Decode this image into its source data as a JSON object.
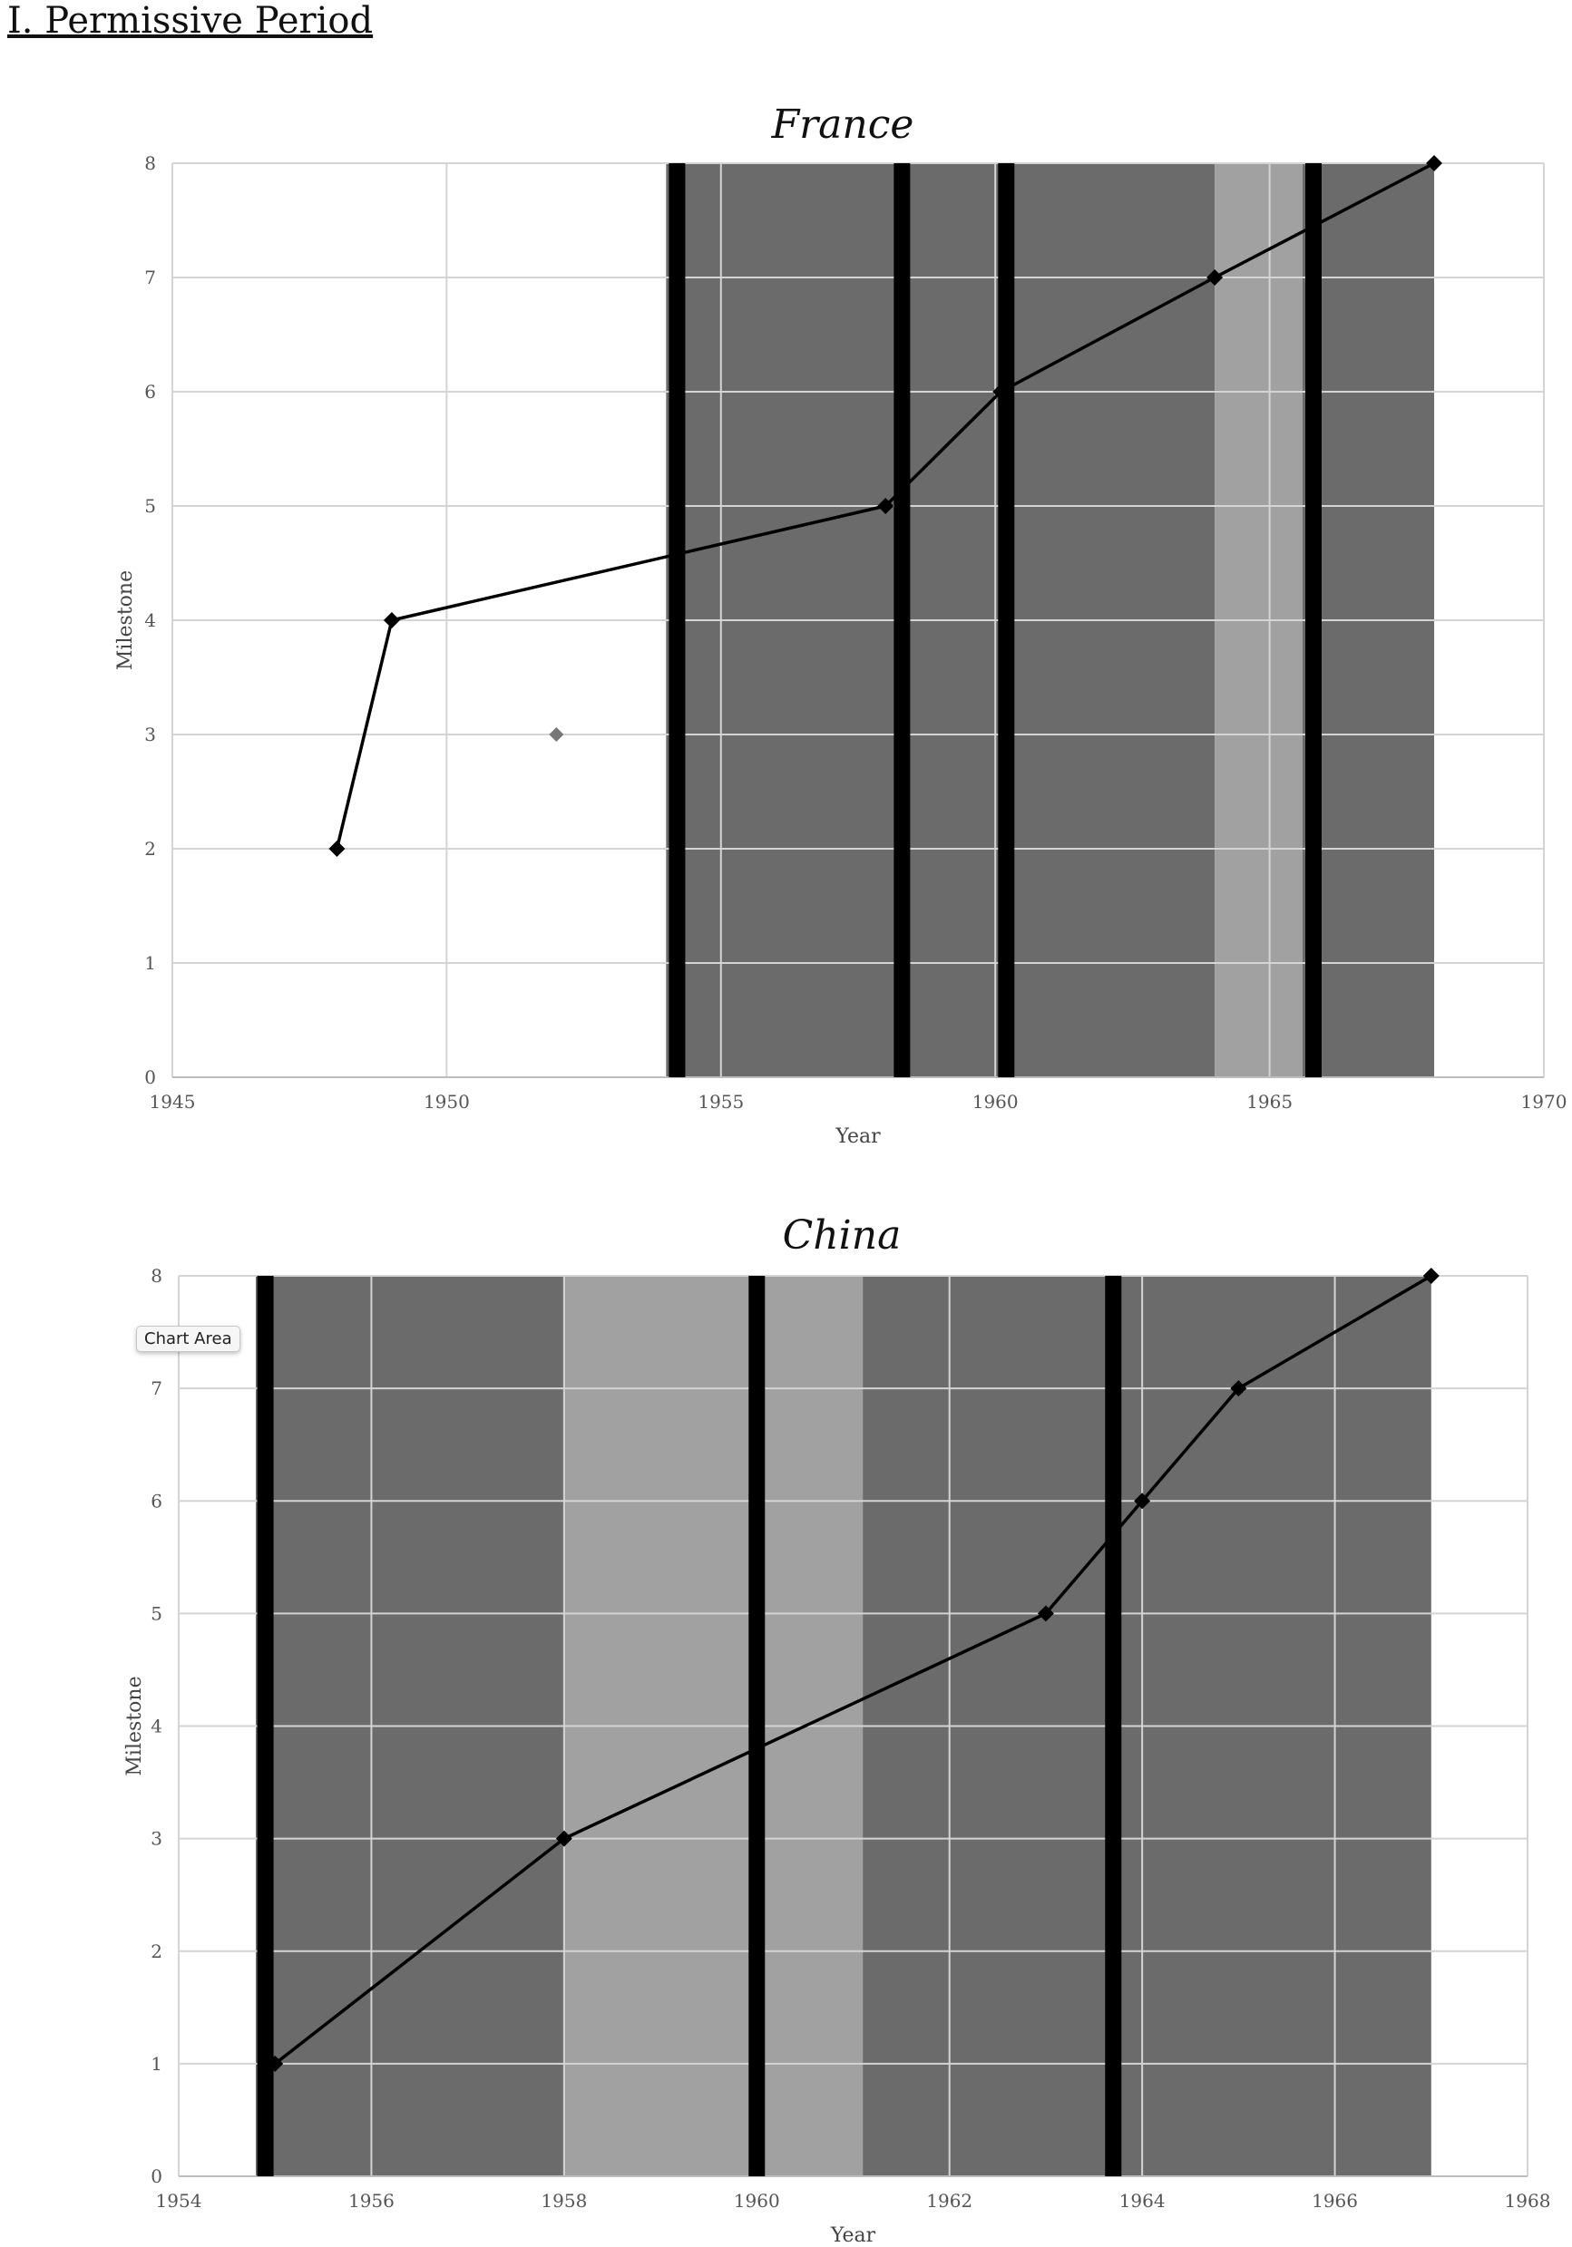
{
  "heading": "I. Permissive Period",
  "tooltip": "Chart Area",
  "chart_data": [
    {
      "type": "line",
      "title": "France",
      "xlabel": "Year",
      "ylabel": "Milestone",
      "xlim": [
        1945,
        1970
      ],
      "ylim": [
        0,
        8
      ],
      "x_ticks": [
        1945,
        1950,
        1955,
        1960,
        1965,
        1970
      ],
      "y_ticks": [
        0,
        1,
        2,
        3,
        4,
        5,
        6,
        7,
        8
      ],
      "grid": true,
      "shaded_periods": [
        {
          "start": 1954,
          "end": 1964,
          "shade": "dark"
        },
        {
          "start": 1964,
          "end": 1965.6,
          "shade": "light"
        },
        {
          "start": 1965.6,
          "end": 1968,
          "shade": "dark"
        }
      ],
      "vertical_markers": [
        1954.2,
        1958.3,
        1960.2,
        1965.8
      ],
      "series": [
        {
          "values": [
            [
              1948,
              2
            ],
            [
              1949,
              4
            ],
            [
              1958,
              5
            ],
            [
              1960.1,
              6
            ],
            [
              1964,
              7
            ],
            [
              1968,
              8
            ]
          ]
        }
      ],
      "isolated_points": [
        [
          1952,
          3
        ]
      ],
      "colors": {
        "dark": "#6b6b6b",
        "light": "#a1a1a1",
        "marker": "#000000",
        "line": "#000000",
        "isolated": "#777777"
      }
    },
    {
      "type": "line",
      "title": "China",
      "xlabel": "Year",
      "ylabel": "Milestone",
      "xlim": [
        1954,
        1968
      ],
      "ylim": [
        0,
        8
      ],
      "x_ticks": [
        1954,
        1956,
        1958,
        1960,
        1962,
        1964,
        1966,
        1968
      ],
      "y_ticks": [
        0,
        1,
        2,
        3,
        4,
        5,
        6,
        7,
        8
      ],
      "grid": true,
      "shaded_periods": [
        {
          "start": 1954.8,
          "end": 1958,
          "shade": "dark"
        },
        {
          "start": 1958,
          "end": 1961.1,
          "shade": "light"
        },
        {
          "start": 1961.1,
          "end": 1967,
          "shade": "dark"
        }
      ],
      "vertical_markers": [
        1954.9,
        1960,
        1963.7
      ],
      "series": [
        {
          "values": [
            [
              1955,
              1
            ],
            [
              1958,
              3
            ],
            [
              1963,
              5
            ],
            [
              1964,
              6
            ],
            [
              1965,
              7
            ],
            [
              1967,
              8
            ]
          ]
        }
      ],
      "isolated_points": [],
      "colors": {
        "dark": "#6b6b6b",
        "light": "#a1a1a1",
        "marker": "#000000",
        "line": "#000000",
        "isolated": "#777777"
      }
    }
  ]
}
